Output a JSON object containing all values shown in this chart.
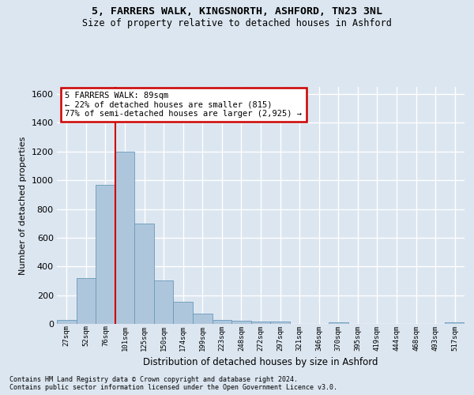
{
  "title_line1": "5, FARRERS WALK, KINGSNORTH, ASHFORD, TN23 3NL",
  "title_line2": "Size of property relative to detached houses in Ashford",
  "xlabel": "Distribution of detached houses by size in Ashford",
  "ylabel": "Number of detached properties",
  "bar_color": "#aec6dc",
  "bar_edge_color": "#6899bb",
  "bin_labels": [
    "27sqm",
    "52sqm",
    "76sqm",
    "101sqm",
    "125sqm",
    "150sqm",
    "174sqm",
    "199sqm",
    "223sqm",
    "248sqm",
    "272sqm",
    "297sqm",
    "321sqm",
    "346sqm",
    "370sqm",
    "395sqm",
    "419sqm",
    "444sqm",
    "468sqm",
    "493sqm",
    "517sqm"
  ],
  "bar_values": [
    30,
    320,
    970,
    1200,
    700,
    305,
    155,
    70,
    30,
    22,
    15,
    15,
    0,
    0,
    12,
    0,
    0,
    0,
    0,
    0,
    12
  ],
  "vline_color": "#cc0000",
  "vline_pos": 2.5,
  "ylim": [
    0,
    1650
  ],
  "yticks": [
    0,
    200,
    400,
    600,
    800,
    1000,
    1200,
    1400,
    1600
  ],
  "annotation_text": "5 FARRERS WALK: 89sqm\n← 22% of detached houses are smaller (815)\n77% of semi-detached houses are larger (2,925) →",
  "annotation_box_color": "#ffffff",
  "annotation_box_edge": "#cc0000",
  "footnote1": "Contains HM Land Registry data © Crown copyright and database right 2024.",
  "footnote2": "Contains public sector information licensed under the Open Government Licence v3.0.",
  "background_color": "#dce6f0",
  "grid_color": "#ffffff"
}
